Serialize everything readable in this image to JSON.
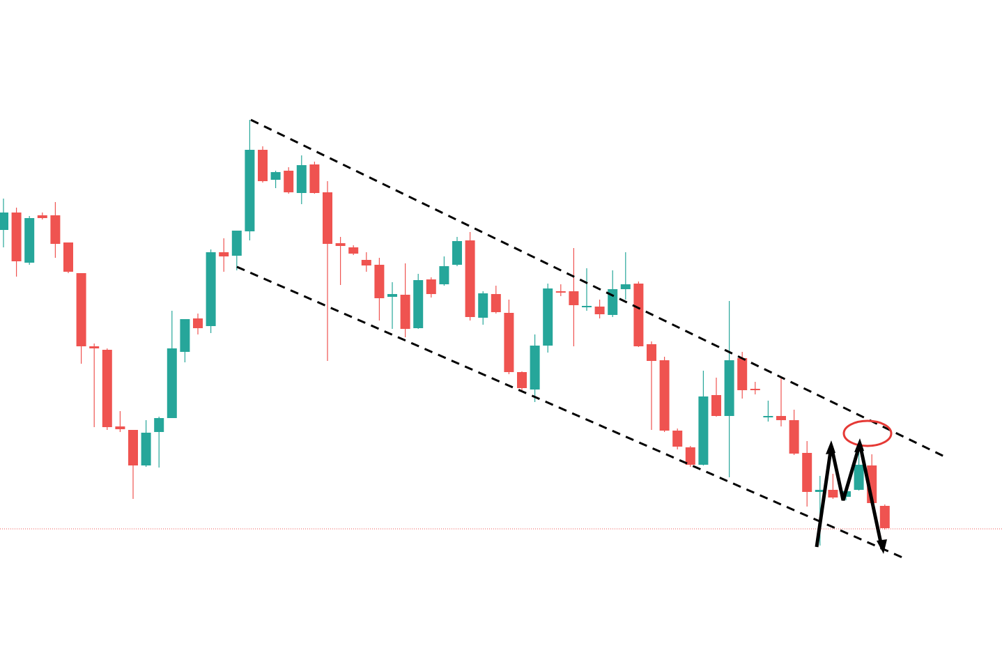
{
  "chart_data": {
    "type": "candlestick",
    "up_color": "#26a69a",
    "down_color": "#ef5350",
    "ylim": [
      0,
      963
    ],
    "open": [
      633,
      658,
      586,
      654,
      654,
      615,
      571,
      466,
      461,
      351,
      346,
      295,
      343,
      363,
      458,
      506,
      495,
      601,
      596,
      631,
      748,
      705,
      718,
      686,
      727,
      687,
      614,
      608,
      590,
      583,
      537,
      540,
      492,
      562,
      555,
      583,
      618,
      507,
      541,
      514,
      429,
      404,
      467,
      545,
      545,
      523,
      523,
      511,
      548,
      556,
      469,
      446,
      345,
      321,
      296,
      396,
      366,
      449,
      405,
      365,
      366,
      360,
      313,
      257,
      260,
      250,
      260,
      295,
      237
    ],
    "high": [
      678,
      665,
      653,
      658,
      673,
      615,
      571,
      470,
      463,
      373,
      346,
      360,
      365,
      517,
      505,
      513,
      605,
      621,
      632,
      791,
      753,
      718,
      723,
      740,
      731,
      703,
      623,
      611,
      601,
      593,
      558,
      585,
      570,
      565,
      595,
      623,
      630,
      545,
      553,
      533,
      430,
      483,
      556,
      555,
      607,
      578,
      533,
      575,
      601,
      559,
      473,
      451,
      348,
      323,
      431,
      421,
      531,
      458,
      415,
      388,
      420,
      375,
      330,
      280,
      283,
      263,
      323,
      311,
      239
    ],
    "low": [
      608,
      566,
      583,
      648,
      593,
      571,
      441,
      350,
      346,
      343,
      247,
      293,
      292,
      363,
      443,
      483,
      485,
      573,
      575,
      618,
      701,
      693,
      685,
      670,
      685,
      445,
      554,
      597,
      573,
      503,
      491,
      479,
      491,
      536,
      553,
      581,
      503,
      497,
      513,
      426,
      403,
      386,
      457,
      538,
      466,
      517,
      506,
      508,
      533,
      465,
      346,
      343,
      318,
      293,
      295,
      365,
      278,
      391,
      397,
      358,
      351,
      310,
      236,
      180,
      247,
      245,
      259,
      238,
      203
    ],
    "close": [
      658,
      588,
      650,
      650,
      613,
      573,
      466,
      463,
      350,
      347,
      295,
      342,
      363,
      463,
      505,
      492,
      601,
      595,
      632,
      748,
      703,
      716,
      687,
      726,
      686,
      613,
      610,
      599,
      582,
      535,
      541,
      491,
      561,
      541,
      581,
      617,
      508,
      542,
      515,
      429,
      406,
      467,
      549,
      543,
      525,
      524,
      512,
      548,
      555,
      466,
      445,
      345,
      322,
      296,
      394,
      366,
      446,
      403,
      404,
      366,
      360,
      312,
      257,
      260,
      249,
      258,
      296,
      241,
      205
    ],
    "price_line": 204,
    "price_line_color": "#ef5350"
  }
}
